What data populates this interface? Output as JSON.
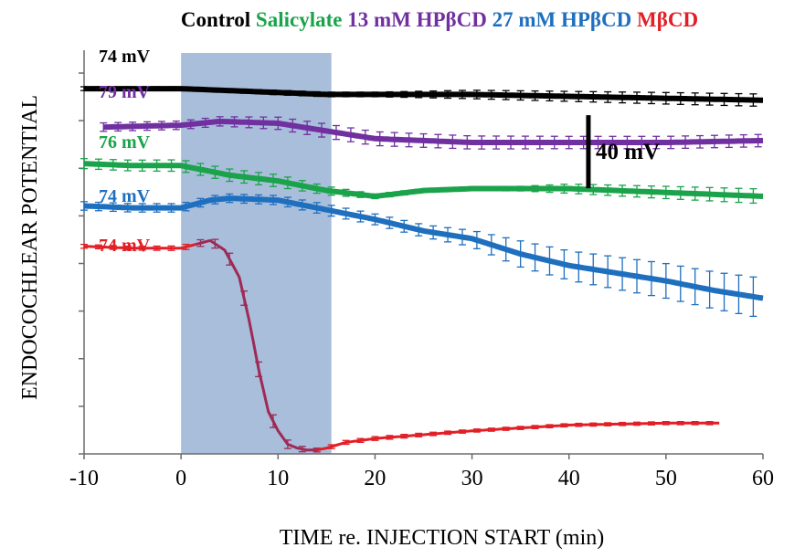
{
  "chart_data": {
    "type": "line",
    "xlabel": "TIME re. INJECTION START (min)",
    "ylabel": "ENDOCOCHLEAR POTENTIAL",
    "xlim": [
      -10,
      60
    ],
    "ylim": [
      -10,
      95
    ],
    "xticks": [
      "-10",
      "0",
      "10",
      "20",
      "30",
      "40",
      "50",
      "60"
    ],
    "y_gridlines": false,
    "injection_window": [
      0,
      15.5
    ],
    "injection_color": "#a9bedb",
    "legend_position": "top",
    "scale_bar": {
      "label": "40 mV",
      "value": 20,
      "x": 42,
      "y_from": 61,
      "y_to": 80
    },
    "series": [
      {
        "name": "Control",
        "color": "#000000",
        "label": "74 mV",
        "label_color": "#000000",
        "x": [
          -10,
          0,
          5,
          10,
          15,
          20,
          30,
          40,
          50,
          60
        ],
        "y": [
          85,
          85,
          84.5,
          84,
          83.5,
          83.5,
          83.5,
          83,
          82.5,
          82
        ],
        "err": [
          0.5,
          0.5,
          0.5,
          0.6,
          0.6,
          0.6,
          1.1,
          1.3,
          1.5,
          1.6
        ]
      },
      {
        "name": "Salicylate",
        "color": "#1aa34a",
        "label": "76 mV",
        "label_color": "#1aa34a",
        "x": [
          -10,
          -5,
          0,
          5,
          10,
          15,
          20,
          25,
          30,
          35,
          40,
          50,
          60
        ],
        "y": [
          65.5,
          65,
          65,
          62.5,
          61,
          58.5,
          57,
          58.5,
          59,
          59,
          59,
          58,
          57
        ],
        "err": [
          1.3,
          1.4,
          1.5,
          1.6,
          1.6,
          1.1,
          0.6,
          0.5,
          0.5,
          0.6,
          1.2,
          1.6,
          1.9
        ]
      },
      {
        "name": "13 mM HPβCD",
        "color": "#7030a0",
        "label": "79 mV",
        "label_color": "#7030a0",
        "x": [
          -8,
          0,
          4,
          10,
          15,
          20,
          30,
          40,
          50,
          60
        ],
        "y": [
          75,
          75.5,
          76.5,
          76,
          74,
          72,
          71,
          71,
          71,
          71.5
        ],
        "err": [
          1.1,
          1.1,
          1.2,
          1.6,
          1.8,
          1.8,
          1.7,
          1.6,
          1.6,
          1.6
        ]
      },
      {
        "name": "27 mM HPβCD",
        "color": "#1f6fbf",
        "label": "74 mV",
        "label_color": "#1f6fbf",
        "x": [
          -10,
          -5,
          0,
          3,
          5,
          10,
          15,
          20,
          25,
          30,
          35,
          40,
          45,
          50,
          55,
          60
        ],
        "y": [
          54.5,
          54,
          54,
          56,
          56.5,
          56,
          53.5,
          51,
          48,
          46,
          42,
          39,
          37,
          35,
          32.5,
          30.5
        ],
        "err": [
          1.1,
          1.1,
          1.1,
          1.1,
          1.1,
          1.2,
          1.4,
          1.4,
          1.6,
          2.1,
          3.4,
          3.8,
          4.2,
          4.5,
          4.8,
          5.2
        ]
      },
      {
        "name": "MβCD",
        "color": "#e21f26",
        "label": "74 mV",
        "label_color": "#e21f26",
        "x": [
          -10,
          -5,
          0,
          1.5,
          3,
          4.5,
          6,
          7,
          8,
          9,
          10,
          11,
          12,
          13,
          14,
          15,
          17,
          20,
          30,
          40,
          50,
          55.5
        ],
        "y": [
          44,
          43.5,
          43.5,
          44.5,
          45.5,
          43,
          36,
          25,
          12,
          1,
          -4,
          -7.5,
          -8.5,
          -9,
          -9,
          -8.5,
          -7,
          -6,
          -4,
          -2.5,
          -2,
          -2
        ],
        "err": [
          0.5,
          0.5,
          0.6,
          0.8,
          1,
          1.4,
          1.8,
          1.9,
          1.9,
          1.8,
          1.5,
          1.1,
          0.8,
          0.6,
          0.5,
          0.5,
          0.5,
          0.5,
          0.4,
          0.4,
          0.4,
          0.4
        ],
        "dark_segment": [
          1.5,
          14
        ],
        "dark_color": "#9e2a55"
      }
    ]
  }
}
